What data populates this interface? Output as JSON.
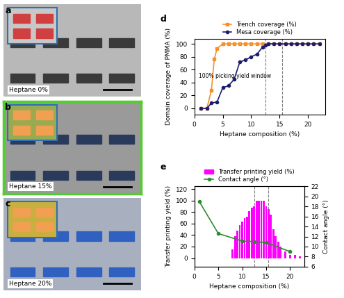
{
  "images": [
    {
      "panel": "a",
      "caption": "Heptane 0%"
    },
    {
      "panel": "b",
      "caption": "Heptane 15%"
    },
    {
      "panel": "c",
      "caption": "Heptane 20%"
    }
  ],
  "chart_data": [
    {
      "panel": "d",
      "type": "line",
      "x_label": "Heptane composition (%)",
      "y_label": "Domain coverage of PMMA (%)",
      "annotation": "100% picking yield window",
      "vlines": [
        12.5,
        15.5
      ],
      "xlim": [
        0,
        23
      ],
      "xticks": [
        0,
        5,
        10,
        15,
        20
      ],
      "ylim": [
        -10,
        108
      ],
      "yticks": [
        0,
        20,
        40,
        60,
        80,
        100
      ],
      "legend": "upper center",
      "series": [
        {
          "name": "Trench coverage (%)",
          "color": "#f5902a",
          "marker": "square",
          "x": [
            1.2,
            2.2,
            3,
            3.5,
            4,
            5,
            6,
            7,
            8,
            9,
            10,
            11,
            12,
            13,
            14,
            15,
            16,
            17,
            18,
            19,
            20,
            21,
            22
          ],
          "values": [
            0,
            0,
            28,
            76,
            93,
            100,
            100,
            100,
            100,
            100,
            100,
            100,
            100,
            100,
            100,
            100,
            100,
            100,
            100,
            100,
            100,
            100,
            100
          ]
        },
        {
          "name": "Mesa coverage (%)",
          "color": "#1c1c6e",
          "marker": "circle",
          "x": [
            1.2,
            2.2,
            3,
            4,
            5,
            6,
            7,
            8,
            9,
            10,
            11,
            12,
            12.5,
            13,
            14,
            15,
            16,
            17,
            18,
            19,
            20,
            21,
            22
          ],
          "values": [
            0,
            0,
            8,
            10,
            32,
            35,
            45,
            72,
            75,
            80,
            84,
            95,
            98,
            100,
            100,
            100,
            100,
            100,
            100,
            100,
            100,
            100,
            100
          ]
        }
      ]
    },
    {
      "panel": "e",
      "type": "bar",
      "x_label": "Heptane composition (%)",
      "y_label": "Transfer printing yield (%)",
      "y2_label": "Contact angle (°)",
      "vlines": [
        12.5,
        15.5
      ],
      "xlim": [
        0,
        23
      ],
      "xticks": [
        0,
        5,
        10,
        15,
        20
      ],
      "ylim": [
        -15,
        125
      ],
      "yticks": [
        0,
        20,
        40,
        60,
        80,
        100,
        120
      ],
      "y2lim": [
        6,
        22
      ],
      "y2ticks": [
        6,
        8,
        10,
        12,
        14,
        16,
        18,
        20,
        22
      ],
      "legend": "upper center",
      "series": [
        {
          "name": "Transfer printing yield (%)",
          "type": "bar",
          "color": "#ff00ff",
          "x": [
            8,
            8.5,
            9,
            9.5,
            10,
            10.5,
            11,
            11.5,
            12,
            12.5,
            13,
            13.5,
            14,
            14.5,
            15,
            15.5,
            16,
            16.5,
            17,
            17.5,
            18,
            19,
            20,
            21,
            22
          ],
          "values": [
            15,
            38,
            48,
            57,
            63,
            70,
            72,
            82,
            88,
            90,
            100,
            100,
            100,
            100,
            90,
            85,
            75,
            50,
            38,
            28,
            20,
            12,
            5,
            5,
            3
          ]
        },
        {
          "name": "Contact angle (°)",
          "type": "line",
          "axis": "y2",
          "color": "#2e8b2e",
          "marker": "circle",
          "x": [
            1,
            5,
            10,
            12.5,
            15,
            20
          ],
          "values": [
            19,
            12.6,
            11.1,
            11.0,
            10.8,
            9.0
          ]
        }
      ]
    }
  ]
}
